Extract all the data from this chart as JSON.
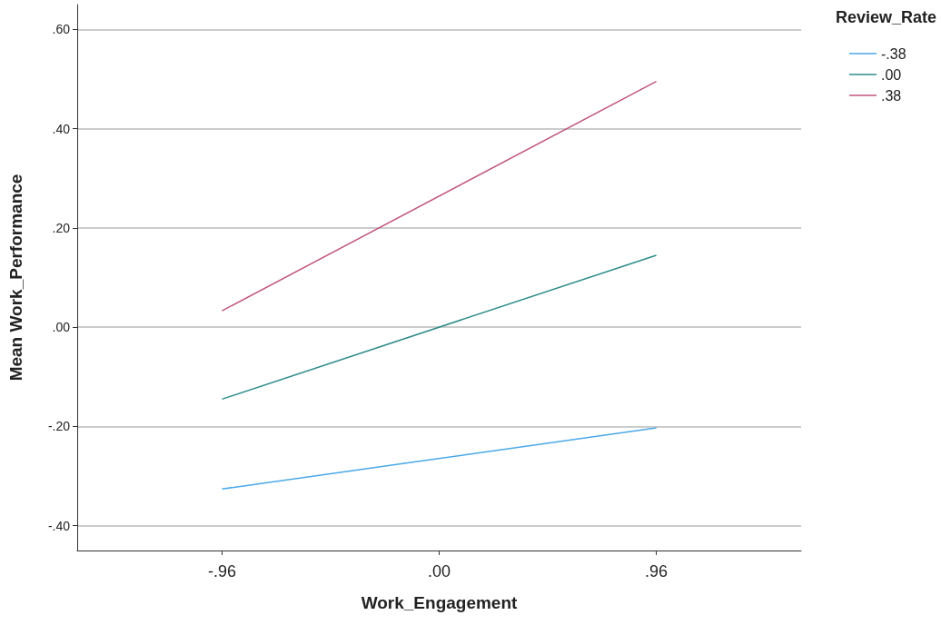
{
  "chart_data": {
    "type": "line",
    "xlabel": "Work_Engagement",
    "ylabel": "Mean Work_Performance",
    "legend_title": "Review_Rate",
    "x": [
      -0.96,
      0.96
    ],
    "series": [
      {
        "name": "-.38",
        "color": "#4aa8e8",
        "values": [
          -0.326,
          -0.203
        ]
      },
      {
        "name": ".00",
        "color": "#2e8b8b",
        "values": [
          -0.145,
          0.145
        ]
      },
      {
        "name": ".38",
        "color": "#c0557f",
        "values": [
          0.033,
          0.495
        ]
      }
    ],
    "xlim": [
      -1.6,
      1.6
    ],
    "xticks": [
      {
        "value": -0.96,
        "label": "-.96"
      },
      {
        "value": 0,
        "label": ".00"
      },
      {
        "value": 0.96,
        "label": ".96"
      }
    ],
    "ylim": [
      -0.45,
      0.65
    ],
    "yticks": [
      {
        "value": -0.4,
        "label": "-.40"
      },
      {
        "value": -0.2,
        "label": "-.20"
      },
      {
        "value": 0,
        "label": ".00"
      },
      {
        "value": 0.2,
        "label": ".20"
      },
      {
        "value": 0.4,
        "label": ".40"
      },
      {
        "value": 0.6,
        "label": ".60"
      }
    ],
    "grid": "y",
    "legend": "top right",
    "marker": "none",
    "line_style": "solid"
  }
}
